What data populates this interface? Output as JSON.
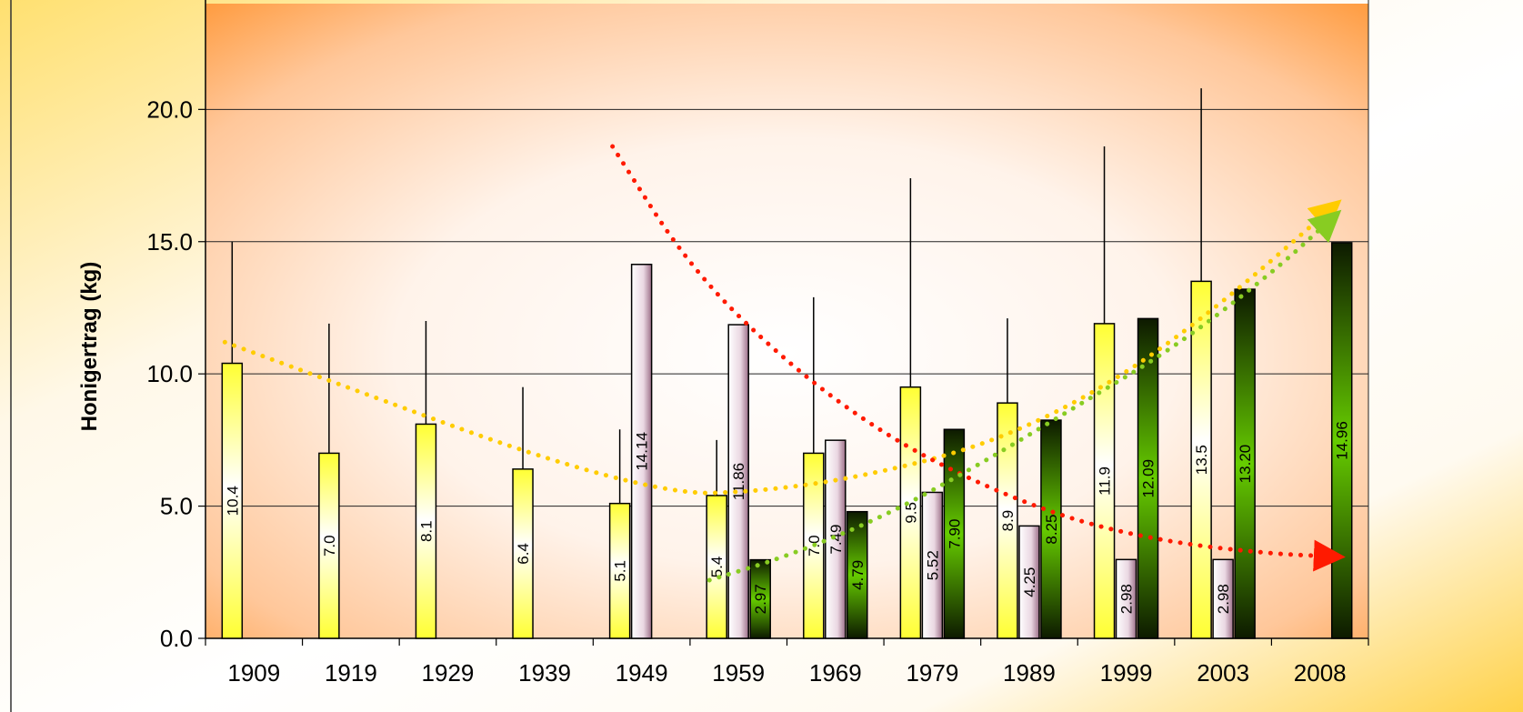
{
  "chart_data": {
    "type": "bar",
    "title": "",
    "ylabel": "Honigertrag (kg)",
    "xlabel": "",
    "ylim": [
      0,
      24
    ],
    "yticks": [
      0,
      5,
      10,
      15,
      20
    ],
    "ytick_labels": [
      "0.0",
      "5.0",
      "10.0",
      "15.0",
      "20.0"
    ],
    "grid": true,
    "categories": [
      "1909",
      "1919",
      "1929",
      "1939",
      "1949",
      "1959",
      "1969",
      "1979",
      "1989",
      "1999",
      "2003",
      "2008"
    ],
    "series": [
      {
        "color": "#ffff33",
        "values": [
          10.4,
          7.0,
          8.1,
          6.4,
          5.1,
          5.4,
          7.0,
          9.5,
          8.9,
          11.9,
          13.5,
          null
        ],
        "labels": [
          "10.4",
          "7.0",
          "8.1",
          "6.4",
          "5.1",
          "5.4",
          "7.0",
          "9.5",
          "8.9",
          "11.9",
          "13.5",
          ""
        ],
        "error_upper": [
          15.0,
          11.9,
          12.0,
          9.5,
          7.9,
          7.5,
          12.9,
          17.4,
          12.1,
          18.6,
          20.8,
          null
        ]
      },
      {
        "color": "#c9a0b4",
        "values": [
          null,
          null,
          null,
          null,
          14.14,
          11.86,
          7.49,
          5.52,
          4.25,
          2.98,
          2.98,
          null
        ],
        "labels": [
          "",
          "",
          "",
          "",
          "14.14",
          "11.86",
          "7.49",
          "5.52",
          "4.25",
          "2.98",
          "2.98",
          ""
        ]
      },
      {
        "color": "#66cc00",
        "values": [
          null,
          null,
          null,
          null,
          null,
          2.97,
          4.79,
          7.9,
          8.25,
          12.09,
          13.2,
          14.96
        ],
        "labels": [
          "",
          "",
          "",
          "",
          "",
          "2.97",
          "4.79",
          "7.90",
          "8.25",
          "12.09",
          "13.20",
          "14.96"
        ]
      }
    ],
    "trendlines": [
      {
        "color": "#ffcc00",
        "x": [
          -0.3,
          4.0,
          5.5,
          7.0,
          8.0,
          9.0,
          10.0,
          11.1
        ],
        "y": [
          11.2,
          5.4,
          5.6,
          6.7,
          8.0,
          10.0,
          12.7,
          16.2
        ]
      },
      {
        "color": "#ff1a00",
        "x": [
          3.7,
          4.5,
          5.5,
          6.5,
          7.5,
          8.5,
          9.5,
          10.5,
          11.1
        ],
        "y": [
          18.6,
          14.0,
          10.4,
          7.7,
          5.8,
          4.4,
          3.6,
          3.2,
          3.1
        ]
      },
      {
        "color": "#88cc22",
        "x": [
          4.7,
          5.5,
          6.5,
          7.5,
          8.5,
          9.5,
          10.5,
          11.1
        ],
        "y": [
          2.2,
          3.1,
          4.6,
          6.6,
          8.8,
          11.0,
          13.8,
          15.8
        ]
      }
    ]
  }
}
